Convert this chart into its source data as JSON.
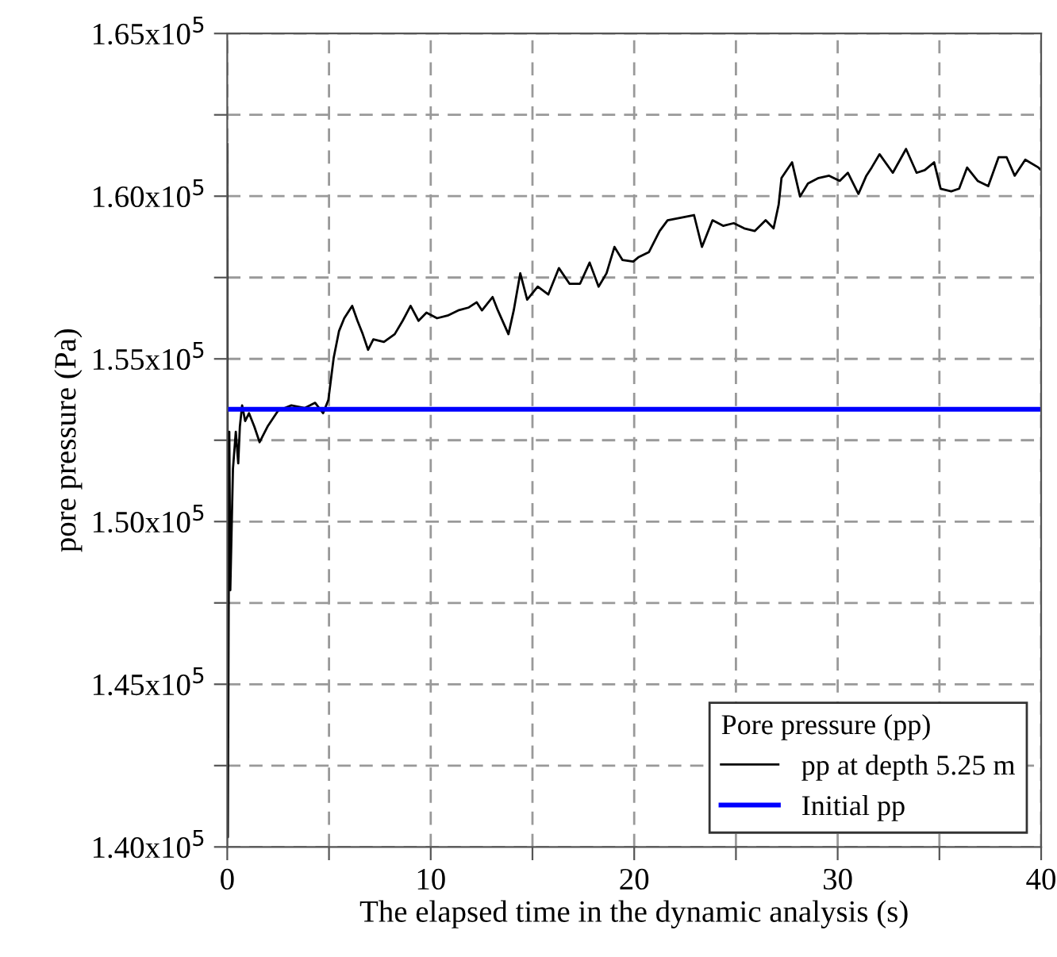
{
  "chart_data": {
    "type": "line",
    "xlabel": "The elapsed time in the dynamic analysis (s)",
    "ylabel": "pore pressure (Pa)",
    "legend_title": "Pore pressure (pp)",
    "xlim": [
      0,
      40
    ],
    "xticks": [
      0,
      {
        "value": 5,
        "label": null
      },
      10,
      {
        "value": 15,
        "label": null
      },
      20,
      {
        "value": 25,
        "label": null
      },
      30,
      {
        "value": 35,
        "label": null
      },
      40
    ],
    "ylim": [
      140000,
      165000
    ],
    "yticks": [
      {
        "value": 140000,
        "label": "1.40x10$^{5}$"
      },
      {
        "value": 142500,
        "label": null
      },
      {
        "value": 145000,
        "label": "1.45x10$^{5}$"
      },
      {
        "value": 147500,
        "label": null
      },
      {
        "value": 150000,
        "label": "1.50x10$^{5}$"
      },
      {
        "value": 152500,
        "label": null
      },
      {
        "value": 155000,
        "label": "1.55x10$^{5}$"
      },
      {
        "value": 157500,
        "label": null
      },
      {
        "value": 160000,
        "label": "1.60x10$^{5}$"
      },
      {
        "value": 162500,
        "label": null
      },
      {
        "value": 165000,
        "label": "1.65x10$^{5}$"
      }
    ],
    "grid": true,
    "legend": "bottom right",
    "series": [
      {
        "name": "pp at depth 5.25 m",
        "color": "#000000",
        "x": [
          0,
          0.03,
          0.1,
          0.15,
          0.28,
          0.42,
          0.54,
          0.62,
          0.73,
          0.88,
          1.07,
          1.33,
          1.59,
          1.98,
          2.5,
          3.15,
          3.8,
          4.32,
          4.71,
          4.97,
          5.23,
          5.49,
          5.75,
          6.14,
          6.4,
          6.66,
          6.92,
          7.18,
          7.7,
          8.23,
          8.62,
          9.01,
          9.4,
          9.79,
          10.31,
          10.83,
          11.35,
          11.87,
          12.26,
          12.52,
          13.04,
          13.3,
          13.82,
          14.08,
          14.4,
          14.74,
          15.26,
          15.78,
          16.3,
          16.82,
          17.34,
          17.81,
          18.25,
          18.64,
          19.03,
          19.42,
          19.95,
          20.2,
          20.72,
          21.25,
          21.64,
          22.29,
          22.94,
          23.33,
          23.85,
          24.37,
          24.89,
          25.41,
          25.93,
          26.46,
          26.85,
          27.1,
          27.24,
          27.76,
          28.15,
          28.54,
          29.06,
          29.58,
          30.1,
          30.5,
          31.02,
          31.41,
          31.67,
          32.06,
          32.71,
          33.36,
          33.88,
          34.28,
          34.74,
          35.06,
          35.58,
          35.97,
          36.36,
          36.88,
          37.4,
          37.91,
          38.3,
          38.7,
          39.22,
          39.87,
          40
        ],
        "values": [
          161600,
          140300,
          152760,
          147890,
          151620,
          152760,
          151790,
          152920,
          153570,
          153090,
          153330,
          152920,
          152440,
          152920,
          153410,
          153570,
          153490,
          153650,
          153330,
          153740,
          155030,
          155850,
          156250,
          156630,
          156170,
          155760,
          155280,
          155600,
          155520,
          155760,
          156170,
          156630,
          156170,
          156420,
          156250,
          156330,
          156490,
          156580,
          156740,
          156490,
          156900,
          156490,
          155760,
          156490,
          157630,
          156820,
          157220,
          156980,
          157790,
          157310,
          157310,
          157960,
          157220,
          157630,
          158440,
          158040,
          157990,
          158120,
          158280,
          158930,
          159260,
          159340,
          159420,
          158440,
          159260,
          159090,
          159170,
          159010,
          158930,
          159260,
          159010,
          159740,
          160560,
          161040,
          159990,
          160390,
          160560,
          160630,
          160470,
          160720,
          160070,
          160630,
          160880,
          161290,
          160720,
          161450,
          160720,
          160800,
          161040,
          160230,
          160150,
          160230,
          160880,
          160470,
          160310,
          161200,
          161200,
          160630,
          161120,
          160880,
          160800
        ]
      },
      {
        "name": "Initial pp",
        "color": "#0000ff",
        "x": [
          0,
          40
        ],
        "values": [
          153450,
          153450
        ]
      }
    ]
  }
}
